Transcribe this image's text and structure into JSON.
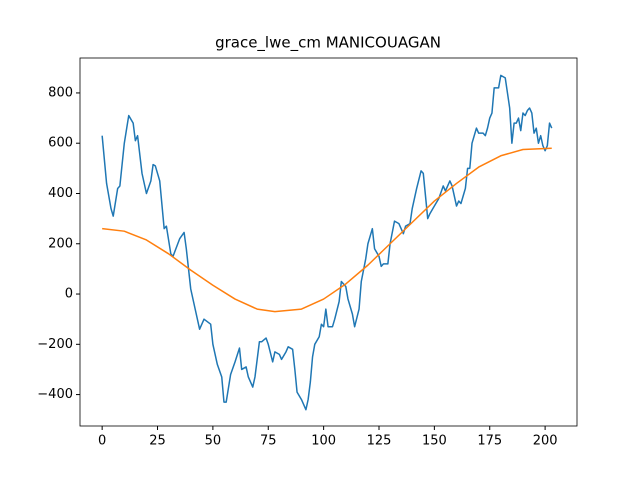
{
  "chart_data": {
    "type": "line",
    "title": "grace_lwe_cm MANICOUAGAN",
    "xlim": [
      -10,
      214.4
    ],
    "ylim": [
      -525,
      939
    ],
    "xticks": [
      0,
      25,
      50,
      75,
      100,
      125,
      150,
      175,
      200
    ],
    "yticks": [
      {
        "value": -400,
        "label": "−400"
      },
      {
        "value": -200,
        "label": "−200"
      },
      0,
      200,
      400,
      600,
      800
    ],
    "series": [
      {
        "color": "#1f77b4",
        "x": [
          0,
          2,
          4,
          5,
          7,
          8,
          10,
          12,
          14,
          15,
          16,
          18,
          20,
          22,
          23,
          24,
          26,
          28,
          29,
          31,
          32,
          35,
          37,
          38,
          40,
          42,
          44,
          46,
          49,
          50,
          52,
          54,
          55,
          56,
          58,
          60,
          62,
          63,
          65,
          66,
          68,
          69,
          71,
          72,
          74,
          75,
          77,
          78,
          80,
          81,
          83,
          84,
          86,
          87,
          88,
          90,
          92,
          93,
          94,
          95,
          96,
          98,
          99,
          100,
          101,
          102,
          104,
          105,
          107,
          108,
          110,
          111,
          113,
          114,
          116,
          117,
          119,
          120,
          122,
          123,
          125,
          126,
          127,
          129,
          130,
          132,
          134,
          136,
          137,
          139,
          140,
          142,
          144,
          145,
          147,
          148,
          150,
          152,
          154,
          155,
          157,
          158,
          160,
          161,
          162,
          163,
          164,
          165,
          166,
          167,
          168,
          169,
          170,
          172,
          173,
          174,
          175,
          176,
          177,
          179,
          180,
          182,
          183,
          184,
          185,
          186,
          187,
          188,
          189,
          190,
          191,
          192,
          193,
          194,
          195,
          196,
          197,
          198,
          199,
          200,
          201,
          202,
          203
        ],
        "values": [
          630,
          440,
          340,
          310,
          420,
          430,
          600,
          710,
          680,
          610,
          630,
          480,
          400,
          450,
          515,
          510,
          450,
          260,
          270,
          160,
          150,
          220,
          245,
          180,
          20,
          -60,
          -140,
          -100,
          -120,
          -200,
          -280,
          -330,
          -430,
          -430,
          -320,
          -270,
          -215,
          -300,
          -290,
          -330,
          -370,
          -330,
          -190,
          -190,
          -175,
          -200,
          -270,
          -230,
          -240,
          -260,
          -230,
          -210,
          -220,
          -300,
          -390,
          -420,
          -460,
          -420,
          -350,
          -250,
          -200,
          -170,
          -120,
          -130,
          -60,
          -130,
          -130,
          -100,
          -30,
          50,
          30,
          -20,
          -80,
          -130,
          -60,
          50,
          140,
          200,
          260,
          180,
          150,
          110,
          120,
          120,
          200,
          290,
          280,
          240,
          270,
          280,
          340,
          420,
          490,
          480,
          300,
          320,
          350,
          380,
          430,
          410,
          450,
          430,
          350,
          370,
          360,
          390,
          420,
          500,
          500,
          600,
          630,
          660,
          640,
          640,
          630,
          660,
          700,
          720,
          820,
          820,
          870,
          860,
          800,
          740,
          600,
          680,
          680,
          700,
          650,
          720,
          710,
          730,
          740,
          720,
          640,
          660,
          600,
          630,
          590,
          570,
          590,
          680,
          660
        ]
      },
      {
        "color": "#ff7f0e",
        "x": [
          0,
          10,
          20,
          30,
          40,
          50,
          60,
          70,
          78,
          90,
          100,
          110,
          120,
          130,
          140,
          150,
          160,
          170,
          180,
          190,
          203
        ],
        "values": [
          260,
          250,
          215,
          160,
          95,
          35,
          -20,
          -60,
          -70,
          -60,
          -20,
          40,
          115,
          200,
          285,
          370,
          440,
          505,
          550,
          575,
          580
        ]
      }
    ]
  }
}
